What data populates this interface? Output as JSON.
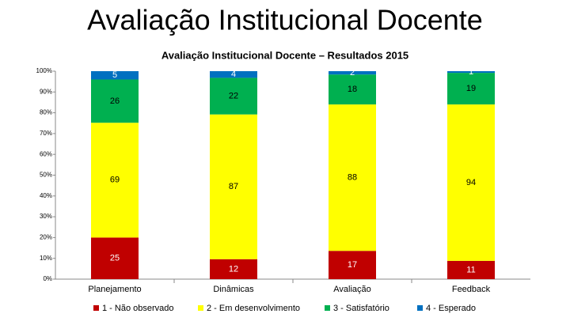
{
  "slide_title": "Avaliação Institucional Docente",
  "chart_data": {
    "type": "bar",
    "stacking": "percent",
    "title": "Avaliação Institucional Docente – Resultados 2015",
    "categories": [
      "Planejamento",
      "Dinâmicas",
      "Avaliação",
      "Feedback"
    ],
    "series": [
      {
        "name": "1 - Não observado",
        "color": "#c00000",
        "values": [
          25,
          12,
          17,
          11
        ]
      },
      {
        "name": "2 - Em desenvolvimento",
        "color": "#ffff00",
        "values": [
          69,
          87,
          88,
          94
        ]
      },
      {
        "name": "3 - Satisfatório",
        "color": "#00b050",
        "values": [
          26,
          22,
          18,
          19
        ]
      },
      {
        "name": "4 - Esperado",
        "color": "#0070c0",
        "values": [
          5,
          4,
          2,
          1
        ]
      }
    ],
    "ylim": [
      0,
      100
    ],
    "yticks": [
      {
        "value": 0,
        "label": "0%"
      },
      {
        "value": 10,
        "label": "10%"
      },
      {
        "value": 20,
        "label": "20%"
      },
      {
        "value": 30,
        "label": "30%"
      },
      {
        "value": 40,
        "label": "40%"
      },
      {
        "value": 50,
        "label": "50%"
      },
      {
        "value": 60,
        "label": "60%"
      },
      {
        "value": 70,
        "label": "70%"
      },
      {
        "value": 80,
        "label": "80%"
      },
      {
        "value": 90,
        "label": "90%"
      },
      {
        "value": 100,
        "label": "100%"
      }
    ],
    "legend": "bottom",
    "grid": false
  }
}
